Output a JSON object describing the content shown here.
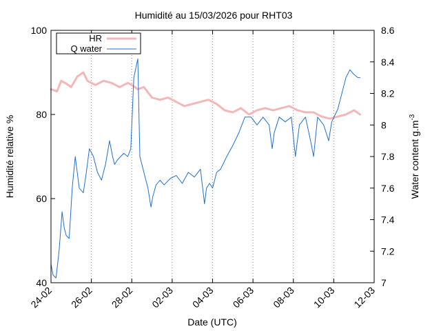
{
  "chart_data": {
    "type": "line",
    "title": "Humidité au 15/03/2026 pour RHT03",
    "xlabel": "Date (UTC)",
    "ylabel": "Humidité relative %",
    "y2label": "Water content g.m",
    "y2label_sup": "-3",
    "x_tick_labels": [
      "24-02",
      "26-02",
      "28-02",
      "02-03",
      "04-03",
      "06-03",
      "08-03",
      "10-03",
      "12-03"
    ],
    "xlim_days": [
      0,
      16
    ],
    "ylim": [
      40,
      100
    ],
    "y_ticks": [
      40,
      60,
      80,
      100
    ],
    "y2lim": [
      7.0,
      8.6
    ],
    "y2_ticks": [
      7,
      7.2,
      7.4,
      7.6,
      7.8,
      8,
      8.2,
      8.4,
      8.6
    ],
    "grid": "vertical dotted at x ticks",
    "legend_position": "top-left",
    "series": [
      {
        "name": "HR",
        "axis": "left",
        "color": "#f4b6b6",
        "x": [
          0,
          0.3,
          0.5,
          0.7,
          1.0,
          1.3,
          1.6,
          1.8,
          2.2,
          2.6,
          3.0,
          3.4,
          3.8,
          4.0,
          4.3,
          4.6,
          5.0,
          5.4,
          5.8,
          6.2,
          6.6,
          7.0,
          7.4,
          7.8,
          8.2,
          8.6,
          9.0,
          9.4,
          9.8,
          10.2,
          10.6,
          11.0,
          11.4,
          11.8,
          12.2,
          12.6,
          13.0,
          13.4,
          13.8,
          14.2,
          14.6,
          15.0,
          15.3
        ],
        "y": [
          86,
          85.5,
          88,
          87.5,
          86.5,
          89,
          90,
          88,
          87,
          88,
          87.5,
          86.5,
          87.5,
          87,
          86,
          86.5,
          84,
          83.5,
          84,
          83,
          82,
          82.5,
          83,
          83.5,
          82.5,
          81,
          80.5,
          81.5,
          80,
          81,
          81.5,
          81,
          81.5,
          82,
          81,
          80.5,
          80.5,
          79.5,
          79,
          79.5,
          80,
          81,
          80
        ]
      },
      {
        "name": "Q water",
        "axis": "right",
        "color": "#1f6fd1",
        "x": [
          0,
          0.1,
          0.25,
          0.4,
          0.55,
          0.65,
          0.75,
          0.9,
          1.05,
          1.2,
          1.3,
          1.4,
          1.6,
          1.75,
          1.9,
          2.1,
          2.3,
          2.5,
          2.7,
          2.9,
          3.05,
          3.15,
          3.3,
          3.45,
          3.6,
          3.8,
          3.95,
          4.1,
          4.3,
          4.35,
          4.4,
          4.6,
          4.8,
          4.95,
          5.05,
          5.2,
          5.4,
          5.6,
          5.9,
          6.2,
          6.5,
          6.8,
          7.1,
          7.4,
          7.6,
          7.7,
          7.85,
          8.0,
          8.2,
          8.4,
          8.7,
          9.0,
          9.3,
          9.6,
          9.9,
          10.2,
          10.5,
          10.8,
          10.95,
          11.05,
          11.3,
          11.6,
          11.9,
          12.1,
          12.3,
          12.6,
          12.85,
          13.0,
          13.2,
          13.5,
          13.75,
          13.9,
          14.2,
          14.4,
          14.6,
          14.8,
          15.0,
          15.2,
          15.3
        ],
        "y": [
          7.12,
          7.05,
          7.03,
          7.2,
          7.45,
          7.35,
          7.3,
          7.28,
          7.6,
          7.8,
          7.7,
          7.6,
          7.57,
          7.7,
          7.85,
          7.8,
          7.7,
          7.65,
          7.75,
          7.9,
          7.8,
          7.75,
          7.78,
          7.8,
          7.82,
          7.8,
          7.85,
          8.3,
          8.42,
          8.1,
          7.8,
          7.7,
          7.6,
          7.48,
          7.55,
          7.62,
          7.65,
          7.62,
          7.66,
          7.68,
          7.63,
          7.7,
          7.67,
          7.72,
          7.5,
          7.6,
          7.63,
          7.6,
          7.7,
          7.72,
          7.8,
          7.87,
          7.95,
          8.05,
          8.05,
          8.0,
          8.05,
          8.0,
          7.85,
          7.95,
          8.05,
          8.02,
          8.05,
          7.8,
          8.0,
          8.05,
          7.9,
          7.8,
          8.05,
          8.0,
          7.9,
          8.02,
          8.1,
          8.2,
          8.3,
          8.35,
          8.32,
          8.3,
          8.3
        ]
      }
    ]
  }
}
